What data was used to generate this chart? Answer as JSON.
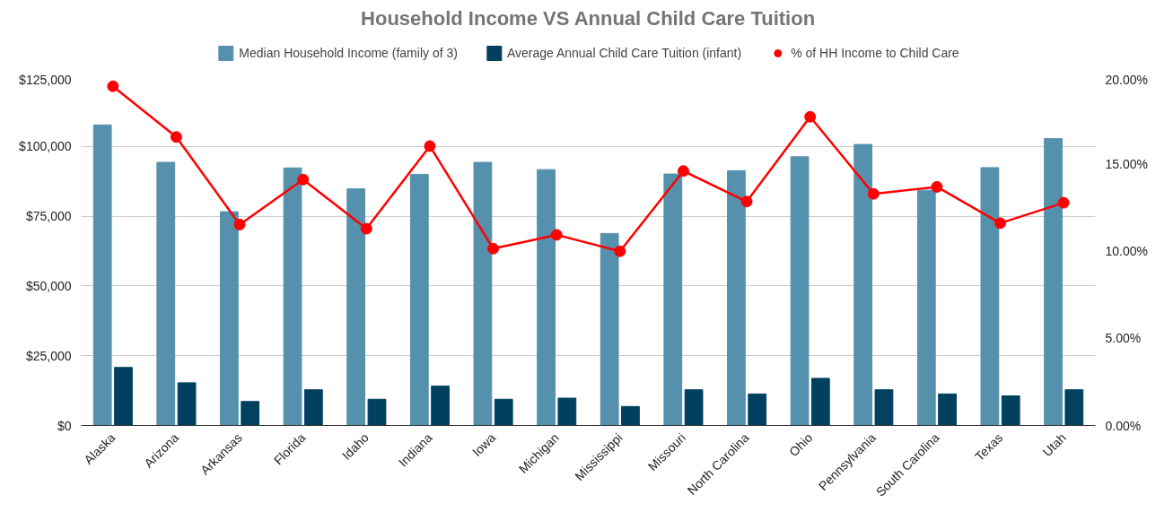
{
  "chart_data": {
    "type": "bar",
    "title": "Household Income VS Annual Child Care Tuition",
    "categories": [
      "Alaska",
      "Arizona",
      "Arkansas",
      "Florida",
      "Idaho",
      "Indiana",
      "Iowa",
      "Michigan",
      "Mississippi",
      "Missouri",
      "North Carolina",
      "Ohio",
      "Pennsylvania",
      "South Carolina",
      "Texas",
      "Utah"
    ],
    "series": [
      {
        "name": "Median Household Income (family of 3)",
        "color": "#5591ad",
        "values": [
          107700,
          94300,
          76600,
          92300,
          84800,
          90000,
          94300,
          91700,
          68800,
          90100,
          91300,
          96300,
          100700,
          84300,
          92400,
          102800
        ]
      },
      {
        "name": "Average Annual Child Care Tuition (infant)",
        "color": "#02405f",
        "values": [
          20800,
          15300,
          8600,
          12800,
          9400,
          14100,
          9400,
          9800,
          6800,
          12800,
          11300,
          16900,
          12800,
          11300,
          10600,
          12800
        ]
      },
      {
        "name": "% of HH Income to Child Care",
        "type": "line",
        "axis": "y2",
        "color": "#ff0000",
        "marker": "circle",
        "values": [
          19.45,
          16.54,
          11.52,
          14.1,
          11.28,
          16.02,
          10.14,
          10.93,
          9.99,
          14.59,
          12.84,
          17.7,
          13.28,
          13.68,
          11.6,
          12.77
        ]
      }
    ],
    "ylim": [
      0,
      125000
    ],
    "yticks": [
      {
        "value": 0,
        "label": "$0"
      },
      {
        "value": 25000,
        "label": "$25,000"
      },
      {
        "value": 50000,
        "label": "$50,000"
      },
      {
        "value": 75000,
        "label": "$75,000"
      },
      {
        "value": 100000,
        "label": "$100,000"
      },
      {
        "value": 125000,
        "label": "$125,000"
      }
    ],
    "y2lim": [
      0,
      20
    ],
    "y2ticks": [
      {
        "value": 0,
        "label": "0.00%"
      },
      {
        "value": 5,
        "label": "5.00%"
      },
      {
        "value": 10,
        "label": "10.00%"
      },
      {
        "value": 15,
        "label": "15.00%"
      },
      {
        "value": 20,
        "label": "20.00%"
      }
    ],
    "grid": "y",
    "legend": "top"
  }
}
